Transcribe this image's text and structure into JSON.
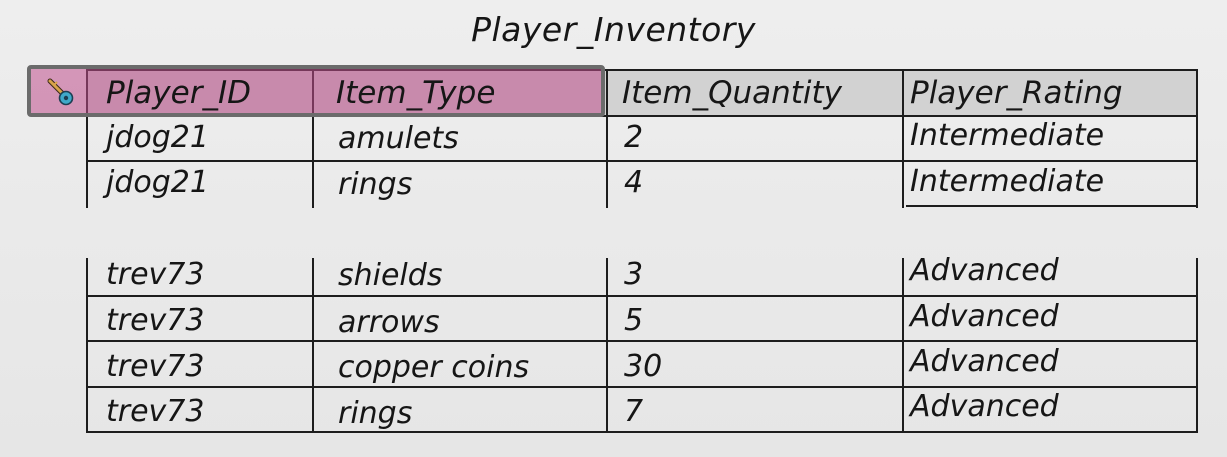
{
  "title": "Player_Inventory",
  "headers": [
    "Player_ID",
    "Item_Type",
    "Item_Quantity",
    "Player_Rating"
  ],
  "primary_key_icon": "key-icon",
  "rows": [
    [
      "jdog21",
      "amulets",
      "2",
      "Intermediate"
    ],
    [
      "jdog21",
      "rings",
      "4",
      "Intermediate"
    ],
    [
      "trev73",
      "shields",
      "3",
      "Advanced"
    ],
    [
      "trev73",
      "arrows",
      "5",
      "Advanced"
    ],
    [
      "trev73",
      "copper coins",
      "30",
      "Advanced"
    ],
    [
      "trev73",
      "rings",
      "7",
      "Advanced"
    ]
  ],
  "colors": {
    "primary_key_highlight": "#c04e8c",
    "header_fill": "#d2d2d2",
    "line": "#1d1d1d"
  }
}
